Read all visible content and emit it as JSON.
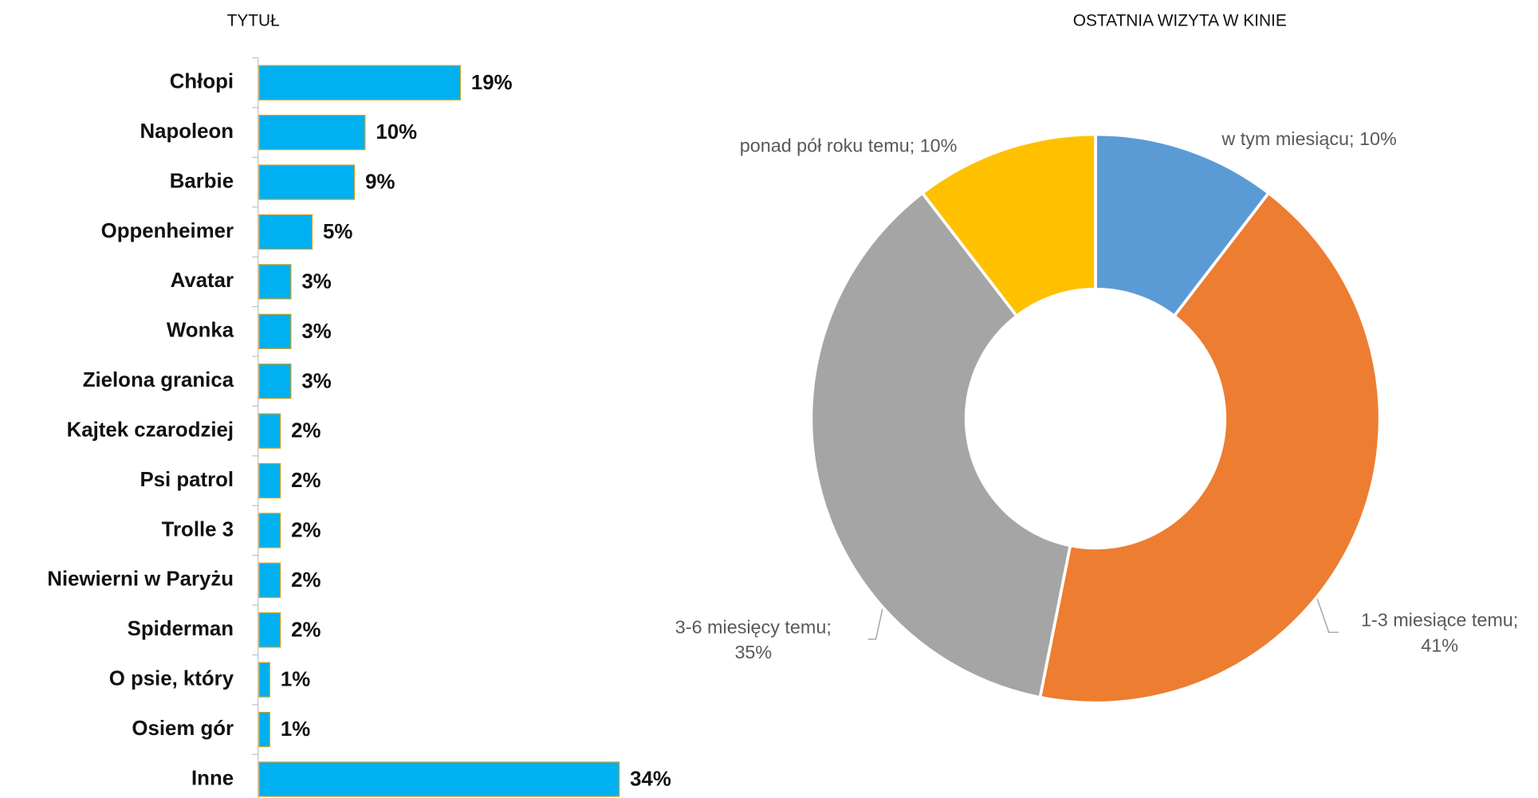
{
  "chart_data": [
    {
      "type": "bar",
      "orientation": "horizontal",
      "title": "TYTUŁ",
      "categories": [
        "Chłopi",
        "Napoleon",
        "Barbie",
        "Oppenheimer",
        "Avatar",
        "Wonka",
        "Zielona granica",
        "Kajtek czarodziej",
        "Psi patrol",
        "Trolle 3",
        "Niewierni w Paryżu",
        "Spiderman",
        "O psie, który",
        "Osiem gór",
        "Inne"
      ],
      "values": [
        19,
        10,
        9,
        5,
        3,
        3,
        3,
        2,
        2,
        2,
        2,
        2,
        1,
        1,
        34
      ],
      "value_labels": [
        "19%",
        "10%",
        "9%",
        "5%",
        "3%",
        "3%",
        "3%",
        "2%",
        "2%",
        "2%",
        "2%",
        "2%",
        "1%",
        "1%",
        "34%"
      ],
      "color": "#00b0f0"
    },
    {
      "type": "donut",
      "title": "OSTATNIA WIZYTA W KINIE",
      "values": [
        10,
        41,
        35,
        10
      ],
      "value_labels": [
        "w tym miesiącu; 10%",
        "1-3 miesiące temu; 41%",
        "3-6 miesięcy temu; 35%",
        "ponad pół roku temu; 10%"
      ],
      "colors": [
        "#5b9bd5",
        "#ed7d31",
        "#a5a5a5",
        "#ffc000"
      ]
    }
  ]
}
